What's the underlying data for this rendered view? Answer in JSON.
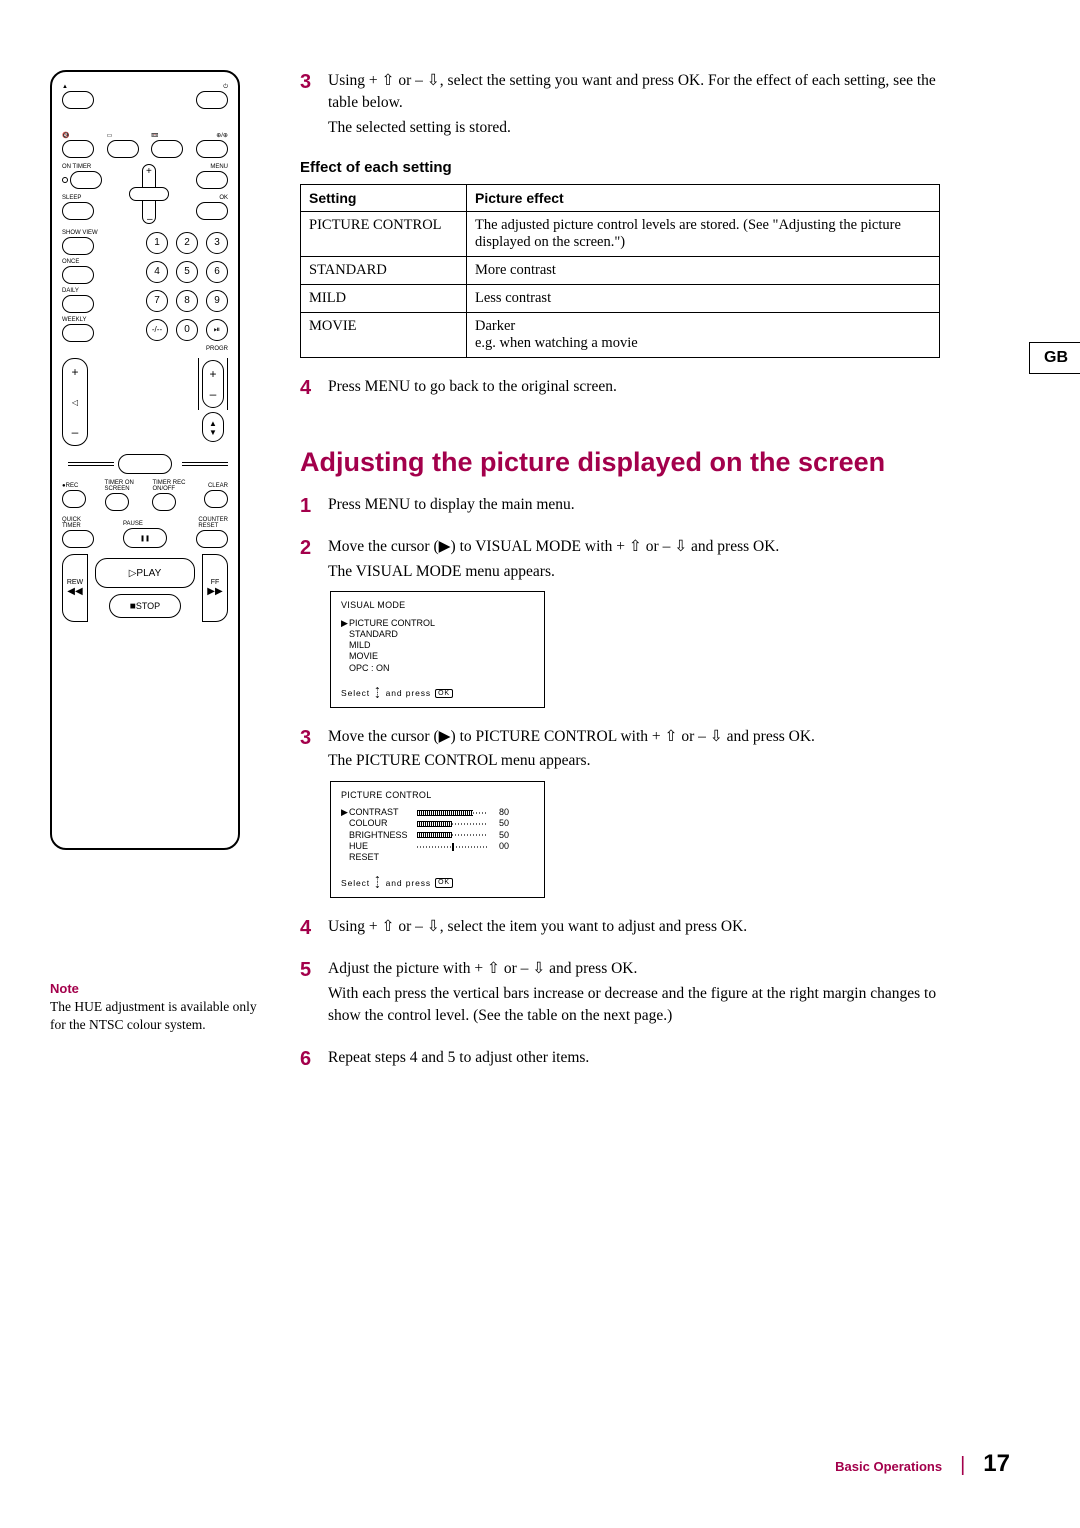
{
  "accent_color": "#a3004b",
  "gb_tab": "GB",
  "remote": {
    "labels": {
      "on_timer": "ON TIMER",
      "menu": "MENU",
      "sleep": "SLEEP",
      "ok": "OK",
      "show_view": "SHOW VIEW",
      "once": "ONCE",
      "daily": "DAILY",
      "weekly": "WEEKLY",
      "progr": "PROGR",
      "rec": "REC",
      "timer_on_screen": "TIMER ON\nSCREEN",
      "timer_rec_onoff": "TIMER REC\nON/OFF",
      "clear": "CLEAR",
      "quick_timer": "QUICK\nTIMER",
      "pause": "PAUSE",
      "counter_reset": "COUNTER\nRESET",
      "rew": "REW",
      "ff": "FF",
      "play": "PLAY",
      "stop": "STOP"
    },
    "numbers": [
      "1",
      "2",
      "3",
      "4",
      "5",
      "6",
      "7",
      "8",
      "9",
      "-/--",
      "0",
      "⏵⏸"
    ]
  },
  "note": {
    "title": "Note",
    "body": "The HUE adjustment is available only for the NTSC colour system."
  },
  "top_steps": {
    "s3": {
      "num": "3",
      "l1": "Using + ⇧ or – ⇩, select the setting  you want and press OK.  For the effect of each setting, see the table below.",
      "l2": "The selected setting is stored."
    },
    "s4": {
      "num": "4",
      "text": "Press MENU to go back to the original screen."
    }
  },
  "effect_table": {
    "heading": "Effect of each setting",
    "cols": [
      "Setting",
      "Picture effect"
    ],
    "rows": [
      [
        "PICTURE CONTROL",
        "The adjusted picture control levels are stored.  (See \"Adjusting the picture displayed on the screen.\")"
      ],
      [
        "STANDARD",
        "More contrast"
      ],
      [
        "MILD",
        "Less contrast"
      ],
      [
        "MOVIE",
        "Darker\ne.g. when watching a movie"
      ]
    ]
  },
  "section_title": "Adjusting the picture displayed on the screen",
  "adj_steps": {
    "s1": {
      "num": "1",
      "text": "Press MENU to display the main menu."
    },
    "s2": {
      "num": "2",
      "l1": "Move the cursor (▶) to VISUAL MODE with + ⇧ or – ⇩ and press OK.",
      "l2": "The VISUAL MODE menu appears."
    },
    "s3": {
      "num": "3",
      "l1": "Move the cursor (▶) to PICTURE CONTROL with + ⇧ or – ⇩ and press OK.",
      "l2": "The PICTURE CONTROL menu appears."
    },
    "s4": {
      "num": "4",
      "text": "Using + ⇧ or – ⇩, select the item you want to adjust and press OK."
    },
    "s5": {
      "num": "5",
      "l1": "Adjust the picture with + ⇧ or – ⇩ and press OK.",
      "l2": "With each press the vertical bars increase or decrease and the figure at the right margin changes to show the control level.  (See the table on the next page.)"
    },
    "s6": {
      "num": "6",
      "text": "Repeat steps 4 and 5 to adjust other items."
    }
  },
  "osd_visual": {
    "title": "VISUAL MODE",
    "items": [
      "PICTURE CONTROL",
      "STANDARD",
      "MILD",
      "MOVIE",
      "OPC :  ON"
    ],
    "selected_index": 0,
    "footer_select": "Select",
    "footer_press": "and press",
    "footer_ok": "OK"
  },
  "osd_picture": {
    "title": "PICTURE CONTROL",
    "rows": [
      {
        "label": "CONTRAST",
        "value": 80,
        "min": 0,
        "max": 100,
        "centered": false
      },
      {
        "label": "COLOUR",
        "value": 50,
        "min": 0,
        "max": 100,
        "centered": false
      },
      {
        "label": "BRIGHTNESS",
        "value": 50,
        "min": 0,
        "max": 100,
        "centered": false
      },
      {
        "label": "HUE",
        "value": 0,
        "min": -50,
        "max": 50,
        "centered": true
      }
    ],
    "reset_label": "RESET",
    "selected_index": 0,
    "footer_select": "Select",
    "footer_press": "and press",
    "footer_ok": "OK"
  },
  "footer": {
    "category": "Basic Operations",
    "page": "17"
  }
}
